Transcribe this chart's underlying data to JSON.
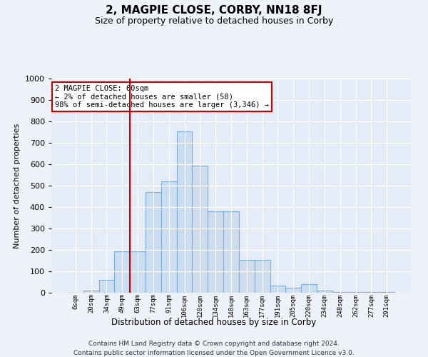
{
  "title": "2, MAGPIE CLOSE, CORBY, NN18 8FJ",
  "subtitle": "Size of property relative to detached houses in Corby",
  "xlabel": "Distribution of detached houses by size in Corby",
  "ylabel": "Number of detached properties",
  "categories": [
    "6sqm",
    "20sqm",
    "34sqm",
    "49sqm",
    "63sqm",
    "77sqm",
    "91sqm",
    "106sqm",
    "120sqm",
    "134sqm",
    "148sqm",
    "163sqm",
    "177sqm",
    "191sqm",
    "205sqm",
    "220sqm",
    "234sqm",
    "248sqm",
    "262sqm",
    "277sqm",
    "291sqm"
  ],
  "values": [
    0,
    10,
    60,
    195,
    195,
    470,
    520,
    755,
    595,
    380,
    380,
    155,
    155,
    35,
    25,
    40,
    10,
    5,
    3,
    3,
    3
  ],
  "bar_color": "#ccddf0",
  "bar_edge_color": "#7aaed4",
  "vline_index": 4,
  "vline_color": "#cc0000",
  "annotation_text": "2 MAGPIE CLOSE: 60sqm\n← 2% of detached houses are smaller (58)\n98% of semi-detached houses are larger (3,346) →",
  "annotation_box_color": "white",
  "annotation_box_edge_color": "#cc0000",
  "ylim": [
    0,
    1000
  ],
  "yticks": [
    0,
    100,
    200,
    300,
    400,
    500,
    600,
    700,
    800,
    900,
    1000
  ],
  "footer1": "Contains HM Land Registry data © Crown copyright and database right 2024.",
  "footer2": "Contains public sector information licensed under the Open Government Licence v3.0.",
  "bg_color": "#edf2f9",
  "plot_bg_color": "#e4ecf7"
}
